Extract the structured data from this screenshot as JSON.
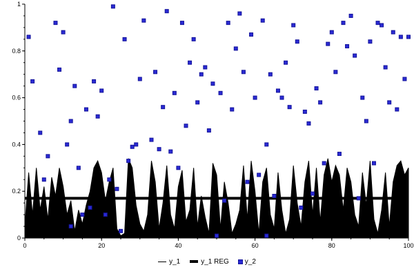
{
  "chart_data": {
    "type": "mixed",
    "title": "",
    "xlabel": "",
    "ylabel": "",
    "x_axis": {
      "min": 0,
      "max": 100,
      "major_ticks": [
        0,
        20,
        40,
        60,
        80,
        100
      ],
      "minor_step": 5
    },
    "y_axis": {
      "min": 0,
      "max": 1,
      "major_ticks": [
        0,
        0.2,
        0.4,
        0.6,
        0.8,
        1
      ],
      "minor_step": 0.05
    },
    "grid": false,
    "legend_position": "bottom-center",
    "series": [
      {
        "name": "y_1",
        "type": "area",
        "color": "#000000",
        "x_start": 0,
        "x_step": 1,
        "values": [
          0.05,
          0.28,
          0.1,
          0.3,
          0.12,
          0.22,
          0.08,
          0.26,
          0.18,
          0.3,
          0.22,
          0.1,
          0.16,
          0.03,
          0.12,
          0.06,
          0.14,
          0.2,
          0.3,
          0.33,
          0.28,
          0.16,
          0.24,
          0.3,
          0.04,
          0.01,
          0.02,
          0.34,
          0.3,
          0.14,
          0.06,
          0.03,
          0.1,
          0.33,
          0.24,
          0.04,
          0.15,
          0.31,
          0.1,
          0.04,
          0.22,
          0.29,
          0.07,
          0.12,
          0.3,
          0.05,
          0.18,
          0.09,
          0.02,
          0.32,
          0.27,
          0.04,
          0.24,
          0.15,
          0.02,
          0.06,
          0.12,
          0.31,
          0.08,
          0.33,
          0.2,
          0.02,
          0.24,
          0.3,
          0.1,
          0.04,
          0.28,
          0.12,
          0.02,
          0.08,
          0.31,
          0.15,
          0.05,
          0.24,
          0.33,
          0.1,
          0.3,
          0.07,
          0.27,
          0.34,
          0.24,
          0.31,
          0.27,
          0.12,
          0.3,
          0.24,
          0.1,
          0.05,
          0.28,
          0.14,
          0.33,
          0.08,
          0.02,
          0.12,
          0.28,
          0.05,
          0.24,
          0.31,
          0.33,
          0.27,
          0.3
        ]
      },
      {
        "name": "y_1 REG",
        "type": "hline",
        "color": "#000000",
        "stroke_width": 4,
        "value": 0.17
      },
      {
        "name": "y_2",
        "type": "scatter",
        "marker": "square",
        "color": "#2a2ad4",
        "edge_color": "#15159a",
        "points": [
          [
            1,
            0.86
          ],
          [
            2,
            0.67
          ],
          [
            4,
            0.45
          ],
          [
            5,
            0.25
          ],
          [
            6,
            0.35
          ],
          [
            8,
            0.92
          ],
          [
            9,
            0.72
          ],
          [
            10,
            0.88
          ],
          [
            11,
            0.4
          ],
          [
            12,
            0.5
          ],
          [
            12,
            0.05
          ],
          [
            13,
            0.65
          ],
          [
            14,
            0.3
          ],
          [
            15,
            0.1
          ],
          [
            16,
            0.55
          ],
          [
            17,
            0.13
          ],
          [
            18,
            0.67
          ],
          [
            19,
            0.52
          ],
          [
            20,
            0.63
          ],
          [
            21,
            0.1
          ],
          [
            22,
            0.25
          ],
          [
            23,
            0.99
          ],
          [
            24,
            0.21
          ],
          [
            25,
            0.03
          ],
          [
            26,
            0.85
          ],
          [
            27,
            0.33
          ],
          [
            28,
            0.39
          ],
          [
            29,
            0.4
          ],
          [
            30,
            0.68
          ],
          [
            31,
            0.93
          ],
          [
            33,
            0.42
          ],
          [
            34,
            0.71
          ],
          [
            35,
            0.38
          ],
          [
            36,
            0.56
          ],
          [
            37,
            0.97
          ],
          [
            38,
            0.37
          ],
          [
            39,
            0.62
          ],
          [
            40,
            0.3
          ],
          [
            41,
            0.92
          ],
          [
            42,
            0.48
          ],
          [
            43,
            0.75
          ],
          [
            44,
            0.85
          ],
          [
            45,
            0.58
          ],
          [
            46,
            0.7
          ],
          [
            47,
            0.73
          ],
          [
            48,
            0.46
          ],
          [
            49,
            0.66
          ],
          [
            50,
            0.01
          ],
          [
            51,
            0.62
          ],
          [
            52,
            0.16
          ],
          [
            53,
            0.92
          ],
          [
            54,
            0.55
          ],
          [
            55,
            0.81
          ],
          [
            56,
            0.96
          ],
          [
            57,
            0.71
          ],
          [
            58,
            0.24
          ],
          [
            59,
            0.87
          ],
          [
            60,
            0.6
          ],
          [
            61,
            0.27
          ],
          [
            62,
            0.93
          ],
          [
            63,
            0.01
          ],
          [
            63,
            0.4
          ],
          [
            64,
            0.7
          ],
          [
            65,
            0.18
          ],
          [
            66,
            0.63
          ],
          [
            67,
            0.6
          ],
          [
            68,
            0.75
          ],
          [
            69,
            0.56
          ],
          [
            70,
            0.91
          ],
          [
            71,
            0.84
          ],
          [
            72,
            0.13
          ],
          [
            73,
            0.54
          ],
          [
            74,
            0.49
          ],
          [
            75,
            0.19
          ],
          [
            76,
            0.64
          ],
          [
            77,
            0.58
          ],
          [
            78,
            0.32
          ],
          [
            79,
            0.83
          ],
          [
            80,
            0.88
          ],
          [
            81,
            0.71
          ],
          [
            82,
            0.36
          ],
          [
            83,
            0.92
          ],
          [
            84,
            0.82
          ],
          [
            85,
            0.95
          ],
          [
            86,
            0.78
          ],
          [
            87,
            0.17
          ],
          [
            88,
            0.6
          ],
          [
            89,
            0.5
          ],
          [
            90,
            0.84
          ],
          [
            91,
            0.32
          ],
          [
            92,
            0.92
          ],
          [
            93,
            0.91
          ],
          [
            94,
            0.73
          ],
          [
            95,
            0.58
          ],
          [
            96,
            0.88
          ],
          [
            97,
            0.55
          ],
          [
            98,
            0.86
          ],
          [
            99,
            0.68
          ],
          [
            100,
            0.86
          ]
        ]
      }
    ]
  },
  "colors": {
    "axis": "#000000",
    "background": "#ffffff",
    "scatter_fill": "#2a2ad4",
    "scatter_edge": "#15159a"
  }
}
